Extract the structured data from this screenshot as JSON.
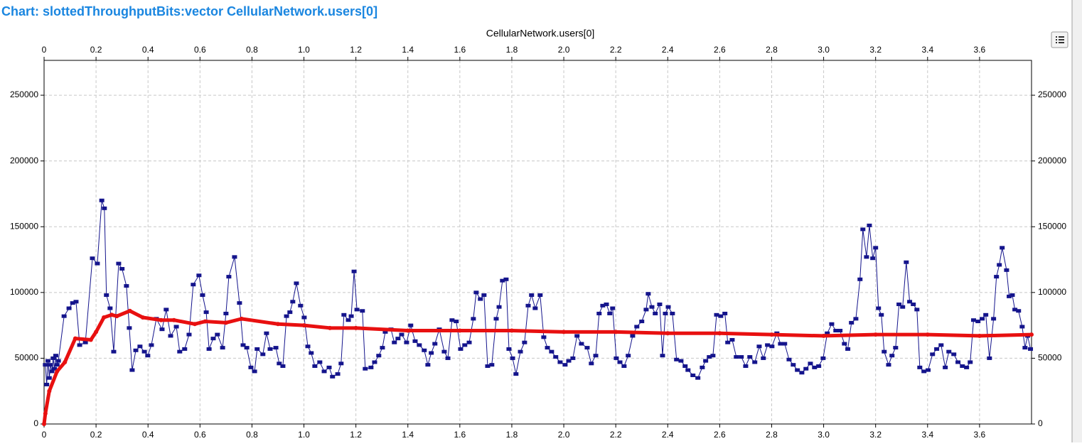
{
  "chart_data": {
    "type": "line",
    "title": "Chart: slottedThroughputBits:vector CellularNetwork.users[0]",
    "subtitle": "CellularNetwork.users[0]",
    "xlim": [
      0,
      3.8
    ],
    "ylim": [
      0,
      276500
    ],
    "xticks": [
      0,
      0.2,
      0.4,
      0.6,
      0.8,
      {
        "value": 1,
        "label": "1.0"
      },
      1.2,
      1.4,
      1.6,
      1.8,
      {
        "value": 2,
        "label": "2.0"
      },
      2.2,
      2.4,
      2.6,
      2.8,
      {
        "value": 3,
        "label": "3.0"
      },
      3.2,
      3.4,
      3.6
    ],
    "yticks": [
      0,
      50000,
      100000,
      150000,
      200000,
      250000
    ],
    "grid": true,
    "series": [
      {
        "color": "#14148c",
        "x": [
          0.005,
          0.01,
          0.015,
          0.02,
          0.025,
          0.03,
          0.035,
          0.04,
          0.045,
          0.05,
          0.055,
          0.077,
          0.096,
          0.11,
          0.123,
          0.137,
          0.159,
          0.186,
          0.205,
          0.222,
          0.232,
          0.24,
          0.254,
          0.268,
          0.287,
          0.3,
          0.317,
          0.328,
          0.339,
          0.353,
          0.369,
          0.386,
          0.399,
          0.413,
          0.432,
          0.454,
          0.47,
          0.487,
          0.509,
          0.522,
          0.541,
          0.558,
          0.574,
          0.596,
          0.61,
          0.624,
          0.635,
          0.651,
          0.667,
          0.687,
          0.7,
          0.711,
          0.733,
          0.752,
          0.766,
          0.78,
          0.796,
          0.81,
          0.82,
          0.842,
          0.856,
          0.87,
          0.892,
          0.905,
          0.919,
          0.933,
          0.946,
          0.957,
          0.971,
          0.987,
          1.001,
          1.015,
          1.028,
          1.042,
          1.061,
          1.078,
          1.097,
          1.11,
          1.13,
          1.143,
          1.154,
          1.171,
          1.182,
          1.193,
          1.204,
          1.225,
          1.236,
          1.258,
          1.272,
          1.288,
          1.302,
          1.313,
          1.335,
          1.348,
          1.362,
          1.376,
          1.395,
          1.411,
          1.428,
          1.444,
          1.463,
          1.477,
          1.49,
          1.504,
          1.521,
          1.54,
          1.554,
          1.57,
          1.586,
          1.603,
          1.619,
          1.636,
          1.652,
          1.663,
          1.679,
          1.693,
          1.707,
          1.723,
          1.74,
          1.751,
          1.764,
          1.778,
          1.789,
          1.803,
          1.816,
          1.833,
          1.849,
          1.863,
          1.876,
          1.89,
          1.909,
          1.923,
          1.937,
          1.953,
          1.969,
          1.986,
          2.005,
          2.019,
          2.035,
          2.051,
          2.068,
          2.09,
          2.106,
          2.123,
          2.136,
          2.15,
          2.164,
          2.177,
          2.188,
          2.202,
          2.216,
          2.232,
          2.248,
          2.265,
          2.281,
          2.3,
          2.317,
          2.325,
          2.339,
          2.352,
          2.369,
          2.38,
          2.391,
          2.402,
          2.418,
          2.434,
          2.451,
          2.467,
          2.478,
          2.497,
          2.516,
          2.533,
          2.546,
          2.56,
          2.574,
          2.588,
          2.604,
          2.62,
          2.631,
          2.648,
          2.664,
          2.683,
          2.7,
          2.716,
          2.735,
          2.752,
          2.768,
          2.784,
          2.801,
          2.82,
          2.834,
          2.85,
          2.867,
          2.883,
          2.899,
          2.916,
          2.932,
          2.949,
          2.965,
          2.981,
          2.998,
          3.014,
          3.031,
          3.047,
          3.063,
          3.08,
          3.093,
          3.107,
          3.124,
          3.14,
          3.151,
          3.165,
          3.176,
          3.189,
          3.2,
          3.211,
          3.222,
          3.233,
          3.25,
          3.263,
          3.277,
          3.29,
          3.304,
          3.318,
          3.331,
          3.345,
          3.359,
          3.37,
          3.386,
          3.402,
          3.419,
          3.435,
          3.452,
          3.468,
          3.482,
          3.501,
          3.517,
          3.534,
          3.55,
          3.564,
          3.577,
          3.594,
          3.61,
          3.624,
          3.638,
          3.654,
          3.665,
          3.676,
          3.687,
          3.704,
          3.714,
          3.726,
          3.736,
          3.75,
          3.764,
          3.775,
          3.785,
          3.796
        ],
        "values": [
          45000,
          30000,
          48000,
          35000,
          45000,
          40000,
          50000,
          42000,
          52000,
          45000,
          48000,
          82000,
          88000,
          92000,
          93000,
          60000,
          62000,
          126000,
          122000,
          170000,
          164000,
          98000,
          88000,
          55000,
          122000,
          118000,
          105000,
          73000,
          41000,
          56000,
          59000,
          55000,
          52000,
          60000,
          80000,
          72000,
          87000,
          67000,
          74000,
          55000,
          57000,
          68000,
          106000,
          113000,
          98000,
          85000,
          57000,
          65000,
          68000,
          58000,
          84000,
          112000,
          127000,
          92000,
          60000,
          58000,
          43000,
          40000,
          57000,
          53000,
          69000,
          57000,
          58000,
          46000,
          44000,
          82000,
          85000,
          93000,
          107000,
          90000,
          81000,
          59000,
          54000,
          44000,
          47000,
          40000,
          43000,
          36000,
          38000,
          46000,
          83000,
          79000,
          82000,
          116000,
          87000,
          86000,
          42000,
          43000,
          47000,
          52000,
          58000,
          70000,
          72000,
          62000,
          65000,
          68000,
          62000,
          75000,
          63000,
          60000,
          56000,
          45000,
          54000,
          61000,
          72000,
          55000,
          50000,
          79000,
          78000,
          57000,
          60000,
          62000,
          80000,
          100000,
          95000,
          98000,
          44000,
          45000,
          80000,
          89000,
          109000,
          110000,
          57000,
          50000,
          38000,
          55000,
          62000,
          90000,
          98000,
          88000,
          98000,
          66000,
          58000,
          55000,
          51000,
          47000,
          45000,
          48000,
          50000,
          67000,
          61000,
          58000,
          46000,
          52000,
          84000,
          90000,
          91000,
          84000,
          88000,
          50000,
          47000,
          44000,
          52000,
          67000,
          74000,
          78000,
          87000,
          99000,
          89000,
          84000,
          91000,
          52000,
          84000,
          89000,
          84000,
          49000,
          48000,
          44000,
          41000,
          37000,
          35000,
          43000,
          48000,
          51000,
          52000,
          83000,
          82000,
          84000,
          62000,
          64000,
          51000,
          51000,
          44000,
          51000,
          47000,
          59000,
          50000,
          60000,
          59000,
          69000,
          61000,
          61000,
          49000,
          45000,
          41000,
          39000,
          42000,
          46000,
          43000,
          44000,
          50000,
          69000,
          76000,
          71000,
          71000,
          61000,
          57000,
          77000,
          80000,
          110000,
          148000,
          127000,
          151000,
          126000,
          134000,
          88000,
          83000,
          55000,
          45000,
          52000,
          58000,
          91000,
          89000,
          123000,
          93000,
          91000,
          87000,
          43000,
          40000,
          41000,
          53000,
          57000,
          60000,
          43000,
          55000,
          53000,
          47000,
          44000,
          43000,
          47000,
          79000,
          78000,
          80000,
          83000,
          50000,
          80000,
          112000,
          121000,
          134000,
          117000,
          97000,
          98000,
          87000,
          86000,
          74000,
          58000,
          67000,
          57000
        ]
      },
      {
        "color": "#e81010",
        "x": [
          0,
          0.005,
          0.02,
          0.05,
          0.08,
          0.12,
          0.18,
          0.2,
          0.23,
          0.26,
          0.28,
          0.33,
          0.38,
          0.45,
          0.5,
          0.58,
          0.62,
          0.7,
          0.76,
          0.9,
          1.0,
          1.1,
          1.2,
          1.4,
          1.6,
          1.8,
          2.0,
          2.2,
          2.4,
          2.6,
          2.8,
          3.0,
          3.2,
          3.4,
          3.6,
          3.8
        ],
        "values": [
          0,
          8000,
          25000,
          40000,
          47000,
          65000,
          64000,
          70000,
          81000,
          83000,
          82000,
          86000,
          81000,
          79000,
          79000,
          76000,
          78000,
          77000,
          80000,
          76000,
          75000,
          73000,
          73000,
          71000,
          71000,
          71000,
          70000,
          70000,
          69000,
          69000,
          68000,
          67000,
          68000,
          68000,
          67000,
          68000
        ]
      }
    ]
  }
}
